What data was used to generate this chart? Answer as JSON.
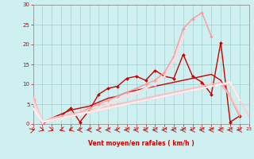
{
  "xlabel": "Vent moyen/en rafales ( km/h )",
  "xlim": [
    0,
    23
  ],
  "ylim": [
    0,
    30
  ],
  "xticks": [
    0,
    1,
    2,
    3,
    4,
    5,
    6,
    7,
    8,
    9,
    10,
    11,
    12,
    13,
    14,
    15,
    16,
    17,
    18,
    19,
    20,
    21,
    22,
    23
  ],
  "yticks": [
    0,
    5,
    10,
    15,
    20,
    25,
    30
  ],
  "bg_color": "#cff0f0",
  "grid_color": "#a0d0d0",
  "series": [
    {
      "x": [
        0,
        1,
        2,
        3,
        4,
        5,
        6,
        7,
        8,
        9,
        10,
        11,
        12,
        13,
        14,
        15,
        16,
        17,
        18,
        19,
        20,
        21,
        22,
        23
      ],
      "y": [
        6,
        0,
        1.5,
        2,
        4,
        0.5,
        3.5,
        7.5,
        9,
        9.5,
        11.5,
        12,
        11,
        13.5,
        12,
        11.5,
        17.5,
        12,
        10.5,
        7.5,
        20.5,
        0.5,
        2,
        null
      ],
      "color": "#cc0000",
      "lw": 1.0,
      "marker": "D",
      "ms": 2.0
    },
    {
      "x": [
        0,
        1,
        2,
        3,
        4,
        5,
        6,
        7,
        8,
        9,
        10,
        11,
        12,
        13,
        14,
        15,
        16,
        17,
        18,
        19,
        20,
        21,
        22,
        23
      ],
      "y": [
        5,
        null,
        1.5,
        2.5,
        3.5,
        4,
        4.5,
        5.5,
        6.5,
        7,
        8,
        8.5,
        9,
        9.5,
        10,
        10.5,
        11,
        11.5,
        12,
        12.5,
        11,
        7,
        2,
        null
      ],
      "color": "#cc0000",
      "lw": 1.0,
      "marker": null,
      "ms": 0
    },
    {
      "x": [
        0,
        1,
        2,
        3,
        4,
        5,
        6,
        7,
        8,
        9,
        10,
        11,
        12,
        13,
        14,
        15,
        16,
        17,
        18,
        19,
        20,
        21,
        22,
        23
      ],
      "y": [
        6.5,
        0.5,
        1.5,
        2,
        2.5,
        3,
        4,
        5,
        6,
        7,
        8,
        9,
        10,
        11,
        13,
        17,
        24,
        26.5,
        28,
        22,
        null,
        null,
        null,
        null
      ],
      "color": "#ff9999",
      "lw": 1.0,
      "marker": "D",
      "ms": 2.0
    },
    {
      "x": [
        0,
        1,
        2,
        3,
        4,
        5,
        6,
        7,
        8,
        9,
        10,
        11,
        12,
        13,
        14,
        15,
        16,
        17,
        18,
        19,
        20,
        21,
        22,
        23
      ],
      "y": [
        7,
        0.5,
        1,
        1.5,
        2,
        2.5,
        3,
        3.5,
        4,
        4.5,
        5,
        5.5,
        6,
        6.5,
        7,
        7.5,
        8,
        8.5,
        9,
        9.5,
        10,
        7,
        2,
        null
      ],
      "color": "#ffaaaa",
      "lw": 1.2,
      "marker": null,
      "ms": 0
    },
    {
      "x": [
        0,
        1,
        2,
        3,
        4,
        5,
        6,
        7,
        8,
        9,
        10,
        11,
        12,
        13,
        14,
        15,
        16,
        17,
        18,
        19,
        20,
        21,
        22,
        23
      ],
      "y": [
        6.5,
        0.5,
        1.5,
        2,
        2.5,
        3,
        3.5,
        4,
        4.5,
        5,
        5.5,
        6,
        6.5,
        7,
        7.5,
        8,
        8.5,
        9,
        9.5,
        10,
        10.5,
        7,
        2.5,
        null
      ],
      "color": "#ffbbbb",
      "lw": 1.2,
      "marker": null,
      "ms": 0
    },
    {
      "x": [
        0,
        1,
        2,
        3,
        4,
        5,
        6,
        7,
        8,
        9,
        10,
        11,
        12,
        13,
        14,
        15,
        16,
        17,
        18,
        19,
        20,
        21,
        22,
        23
      ],
      "y": [
        6,
        0.5,
        1,
        1.5,
        2,
        2.5,
        3,
        3.5,
        4,
        4.5,
        5,
        5.5,
        6,
        6.5,
        7,
        7.5,
        8,
        8.5,
        9,
        9.5,
        10,
        10,
        6,
        2
      ],
      "color": "#ffcccc",
      "lw": 1.5,
      "marker": null,
      "ms": 0
    },
    {
      "x": [
        0,
        1,
        2,
        3,
        4,
        5,
        6,
        7,
        8,
        9,
        10,
        11,
        12,
        13,
        14,
        15,
        16,
        17,
        18,
        19,
        20,
        21,
        22,
        23
      ],
      "y": [
        5.5,
        0.5,
        1,
        1.5,
        2,
        2.5,
        3,
        4,
        5,
        6,
        7,
        8,
        9,
        10,
        12,
        16,
        22,
        null,
        null,
        null,
        null,
        null,
        null,
        null
      ],
      "color": "#ffdddd",
      "lw": 1.5,
      "marker": "^",
      "ms": 2.5
    },
    {
      "x": [
        0,
        1,
        2,
        3,
        4,
        5,
        6,
        7,
        8,
        9,
        10,
        11,
        12,
        13,
        14,
        15,
        16,
        17,
        18,
        19,
        20,
        21,
        22,
        23
      ],
      "y": [
        4,
        0.5,
        1,
        1.5,
        2,
        2.5,
        3,
        3.5,
        4,
        4.5,
        5,
        5.5,
        6,
        6.5,
        7,
        7.5,
        8,
        8.5,
        9,
        9.5,
        10,
        10.5,
        6,
        null
      ],
      "color": "#ffeeee",
      "lw": 1.5,
      "marker": null,
      "ms": 0
    }
  ]
}
